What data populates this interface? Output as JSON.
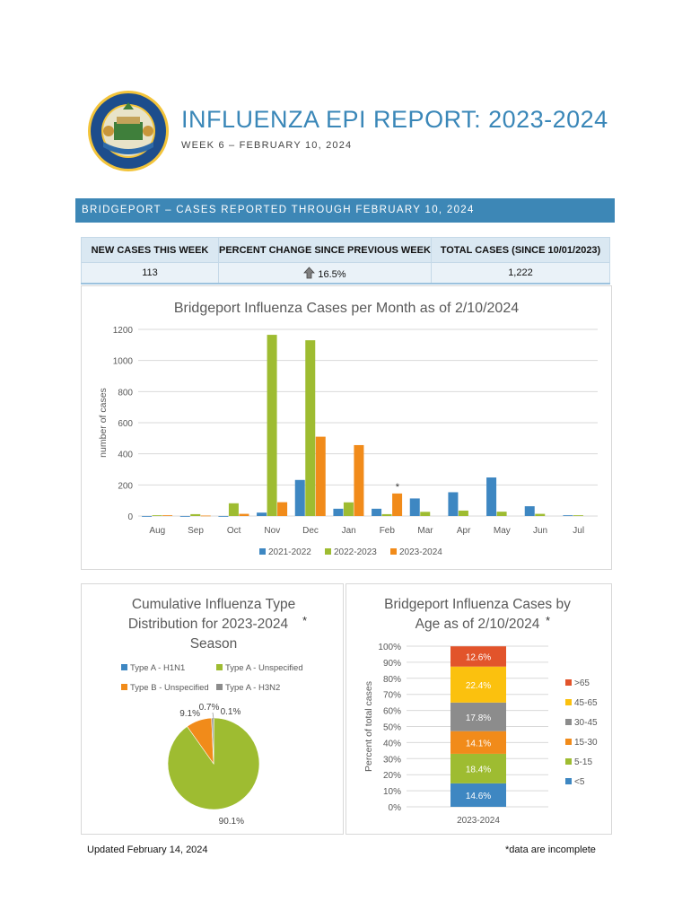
{
  "header": {
    "title": "INFLUENZA EPI REPORT: 2023-2024",
    "subtitle": "WEEK 6 – FEBRUARY 10, 2024",
    "seal_name": "State seal"
  },
  "banner": {
    "text": "BRIDGEPORT – CASES REPORTED THROUGH FEBRUARY 10, 2024"
  },
  "summary": {
    "headers": [
      "NEW CASES THIS WEEK",
      "PERCENT CHANGE SINCE PREVIOUS WEEK",
      "TOTAL CASES (SINCE 10/01/2023)"
    ],
    "new_cases": "113",
    "percent_change": "16.5%",
    "total_cases": "1,222"
  },
  "colors": {
    "s1": "#3e87c2",
    "s2": "#9ebc31",
    "s3": "#f18b1a",
    "banner": "#3d87b6"
  },
  "chart_data": [
    {
      "type": "bar",
      "title": "Bridgeport Influenza Cases per Month as of 2/10/2024",
      "xlabel": "",
      "ylabel": "number of cases",
      "ylim": [
        0,
        1200
      ],
      "yticks": [
        0,
        200,
        400,
        600,
        800,
        1000,
        1200
      ],
      "grid": true,
      "legend": "bottom",
      "annotation": {
        "category": "Feb",
        "series": "2023-2024",
        "text": "*"
      },
      "categories": [
        "Aug",
        "Sep",
        "Oct",
        "Nov",
        "Dec",
        "Jan",
        "Feb",
        "Mar",
        "Apr",
        "May",
        "Jun",
        "Jul"
      ],
      "series": [
        {
          "name": "2021-2022",
          "color": "#3e87c2",
          "values": [
            0,
            0,
            0,
            22,
            232,
            47,
            47,
            113,
            153,
            248,
            63,
            5
          ]
        },
        {
          "name": "2022-2023",
          "color": "#9ebc31",
          "values": [
            5,
            12,
            82,
            1165,
            1130,
            88,
            12,
            27,
            35,
            28,
            14,
            5
          ]
        },
        {
          "name": "2023-2024",
          "color": "#f18b1a",
          "values": [
            5,
            3,
            14,
            89,
            510,
            456,
            145,
            null,
            null,
            null,
            null,
            null
          ]
        }
      ]
    },
    {
      "type": "pie",
      "title": [
        "Cumulative Influenza Type",
        "Distribution for 2023-2024",
        "Season"
      ],
      "title_mark": "*",
      "legend": "top",
      "slices": [
        {
          "label": "Type A - H1N1",
          "value": 0.1,
          "display": "0.1%",
          "color": "#3e87c2"
        },
        {
          "label": "Type A - Unspecified",
          "value": 90.1,
          "display": "90.1%",
          "color": "#9ebc31"
        },
        {
          "label": "Type B - Unspecified",
          "value": 9.1,
          "display": "9.1%",
          "color": "#f18b1a"
        },
        {
          "label": "Type A - H3N2",
          "value": 0.7,
          "display": "0.7%",
          "color": "#8c8c8c"
        }
      ]
    },
    {
      "type": "bar",
      "subtype": "stacked-100",
      "title": [
        "Bridgeport Influenza Cases by",
        "Age as of 2/10/2024"
      ],
      "title_mark": "*",
      "ylabel": "Percent of total cases",
      "ylim": [
        0,
        100
      ],
      "yticks": [
        "0%",
        "10%",
        "20%",
        "30%",
        "40%",
        "50%",
        "60%",
        "70%",
        "80%",
        "90%",
        "100%"
      ],
      "categories": [
        "2023-2024"
      ],
      "legend": "right",
      "segments": [
        {
          "name": "<5",
          "value": 14.6,
          "label": "14.6%",
          "color": "#3e87c2"
        },
        {
          "name": "5-15",
          "value": 18.4,
          "label": "18.4%",
          "color": "#9ebc31"
        },
        {
          "name": "15-30",
          "value": 14.1,
          "label": "14.1%",
          "color": "#f18b1a"
        },
        {
          "name": "30-45",
          "value": 17.8,
          "label": "17.8%",
          "color": "#8c8c8c"
        },
        {
          "name": "45-65",
          "value": 22.4,
          "label": "22.4%",
          "color": "#fbc10e"
        },
        {
          "name": ">65",
          "value": 12.6,
          "label": "12.6%",
          "color": "#e2542b"
        }
      ]
    }
  ],
  "footer": {
    "updated": "Updated February 14, 2024",
    "note": "*data are incomplete"
  }
}
